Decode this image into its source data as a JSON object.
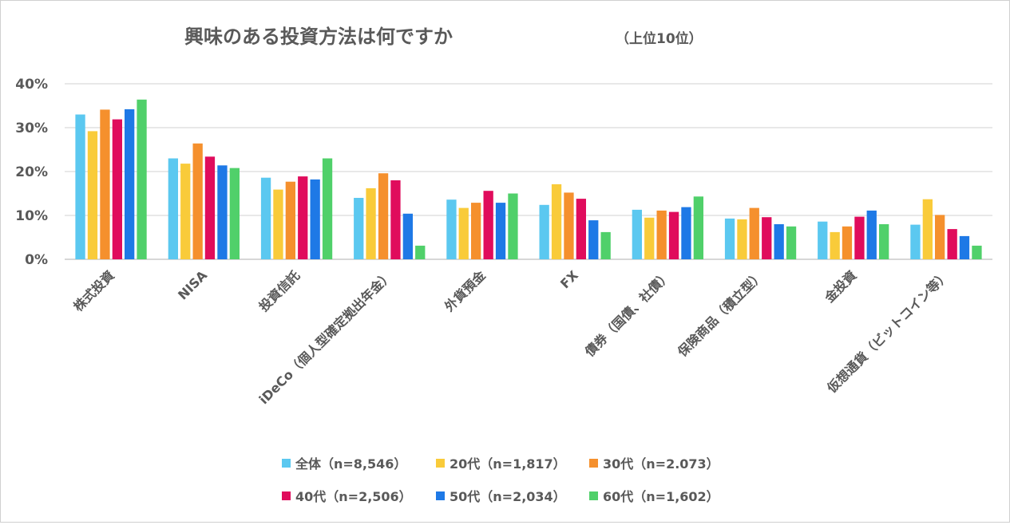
{
  "chart_data": {
    "type": "bar",
    "title": "興味のある投資方法は何ですか",
    "subtitle": "（上位10位）",
    "xlabel": "",
    "ylabel": "",
    "ylim": [
      0,
      40
    ],
    "y_ticks": [
      "0%",
      "10%",
      "20%",
      "30%",
      "40%"
    ],
    "grid": true,
    "legend_position": "bottom",
    "categories": [
      "株式投資",
      "NISA",
      "投資信託",
      "iDeCo（個人型確定拠出年金）",
      "外貨預金",
      "FX",
      "債券（国債、社債）",
      "保険商品（積立型）",
      "金投資",
      "仮想通貨（ビットコイン等）"
    ],
    "series": [
      {
        "name": "全体（n=8,546）",
        "color": "#5bc8f0",
        "values": [
          33.0,
          23.0,
          18.6,
          14.0,
          13.6,
          12.4,
          11.3,
          9.3,
          8.6,
          7.9
        ]
      },
      {
        "name": "20代（n=1,817）",
        "color": "#f9cb3a",
        "values": [
          29.2,
          21.8,
          15.9,
          16.2,
          11.7,
          17.1,
          9.5,
          9.1,
          6.2,
          13.7
        ]
      },
      {
        "name": "30代（n=2.073）",
        "color": "#f5902d",
        "values": [
          34.1,
          26.4,
          17.7,
          19.6,
          12.9,
          15.2,
          11.1,
          11.7,
          7.5,
          10.1
        ]
      },
      {
        "name": "40代（n=2,506）",
        "color": "#e00c5c",
        "values": [
          31.9,
          23.4,
          18.9,
          18.0,
          15.6,
          13.8,
          10.8,
          9.6,
          9.7,
          6.9
        ]
      },
      {
        "name": "50代（n=2,034）",
        "color": "#1e79e6",
        "values": [
          34.2,
          21.4,
          18.2,
          10.4,
          12.9,
          8.9,
          11.9,
          8.0,
          11.1,
          5.3
        ]
      },
      {
        "name": "60代（n=1,602）",
        "color": "#50d06a",
        "values": [
          36.4,
          20.8,
          23.0,
          3.1,
          15.0,
          6.2,
          14.3,
          7.5,
          8.0,
          3.1
        ]
      }
    ]
  }
}
